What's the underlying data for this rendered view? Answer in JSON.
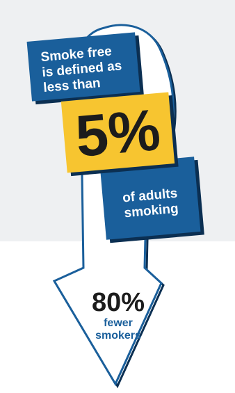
{
  "infographic": {
    "intro_lines": [
      "Smoke free",
      "is defined as",
      "less than"
    ],
    "threshold_value": "5%",
    "tail_lines": [
      "of adults",
      "smoking"
    ],
    "target_value": "80%",
    "target_lines": [
      "fewer",
      "smokers"
    ]
  },
  "colors": {
    "blue": "#1a5f9b",
    "dark_navy": "#0b2f52",
    "yellow": "#f7c530",
    "panel_gray": "#eef0f2",
    "text_dark": "#1c1c1c"
  }
}
